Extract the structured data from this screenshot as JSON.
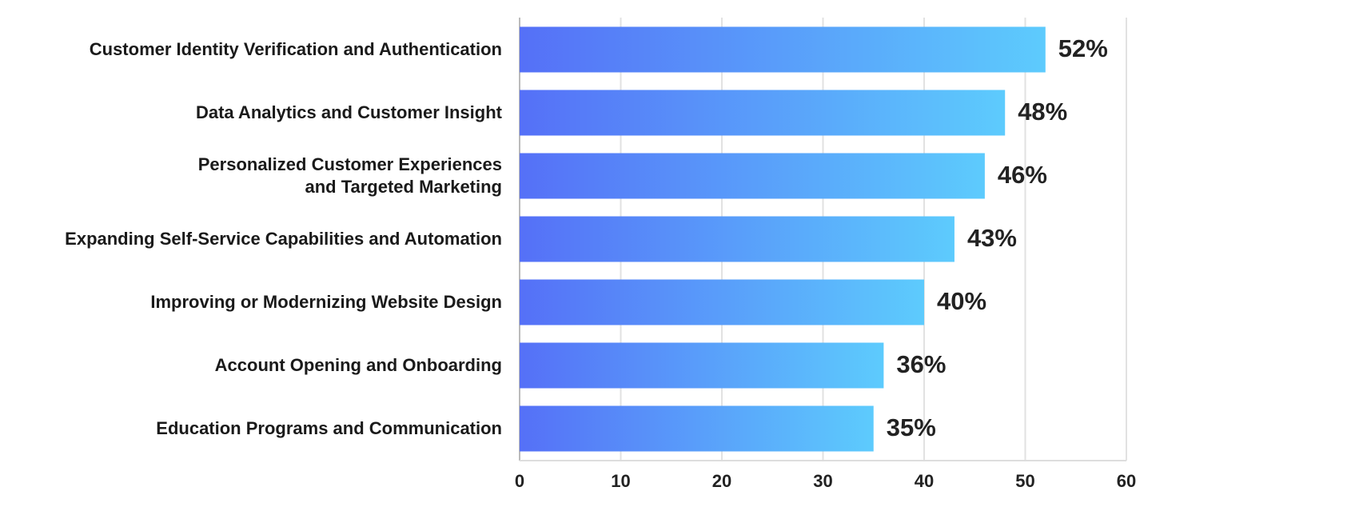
{
  "chart_data": {
    "type": "hbar",
    "categories": [
      "Customer Identity Verification and Authentication",
      "Data Analytics and Customer Insight",
      "Personalized Customer Experiences\nand Targeted Marketing",
      "Expanding Self-Service Capabilities and Automation",
      "Improving or Modernizing Website Design",
      "Account Opening and Onboarding",
      "Education Programs and Communication"
    ],
    "values": [
      52,
      48,
      46,
      43,
      40,
      36,
      35
    ],
    "value_labels": [
      "52%",
      "48%",
      "46%",
      "43%",
      "40%",
      "36%",
      "35%"
    ],
    "gradient": [
      "#5570f7",
      "#5dcbfd"
    ],
    "xlim": [
      0,
      60
    ],
    "xticks": [
      0,
      10,
      20,
      30,
      40,
      50,
      60
    ],
    "grid": true
  }
}
